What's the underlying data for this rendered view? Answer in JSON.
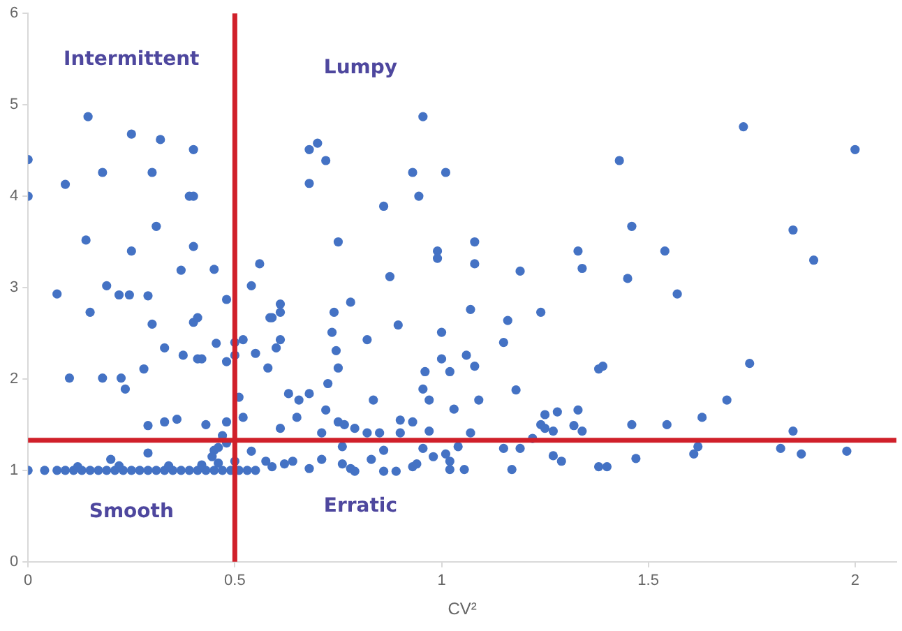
{
  "chart_data": {
    "type": "scatter",
    "xlabel": "CV²",
    "xlim": [
      0,
      2.1
    ],
    "xticks": [
      0,
      {
        "value": 0.5,
        "label": "0.5"
      },
      1,
      {
        "value": 1.5,
        "label": "1.5"
      },
      2
    ],
    "ylim": [
      0,
      6
    ],
    "yticks": [
      0,
      1,
      2,
      3,
      4,
      5,
      6
    ],
    "grid": false,
    "legend": false,
    "marker": "circle",
    "series": [
      {
        "color": "#4472c4",
        "x": [
          0,
          0,
          0.145,
          0.09,
          0.18,
          0.25,
          0.32,
          0.3,
          0.4,
          0.39,
          0.4,
          0.14,
          0.31,
          0.25,
          0.4,
          0.37,
          0.45,
          0.07,
          0.19,
          0.22,
          0.245,
          0.29,
          0.15,
          0.48,
          0.54,
          0.56,
          0.68,
          0.7,
          0.72,
          0.68,
          0.75,
          0.875,
          0.86,
          0.955,
          0.93,
          0.945,
          1.01,
          0.99,
          0.99,
          0.74,
          0.78,
          0.59,
          0.61,
          1.43,
          1.73,
          2.0,
          1.46,
          1.85,
          1.9,
          1.08,
          1.08,
          1.19,
          1.33,
          1.34,
          1.54,
          1.45,
          1.57,
          1.07,
          1.16,
          1.24,
          1.0,
          1.15,
          1.0,
          1.06,
          1.08,
          1.02,
          1.18,
          1.09,
          1.03,
          1.38,
          1.39,
          1.745,
          1.69,
          1.63,
          1.545,
          1.46,
          1.33,
          1.28,
          1.25,
          1.24,
          1.25,
          1.27,
          1.32,
          1.34,
          1.07,
          1.85,
          1.04,
          1.15,
          1.19,
          1.22,
          1.27,
          1.29,
          1.38,
          1.4,
          1.47,
          1.61,
          1.62,
          1.82,
          1.87,
          1.98,
          1.17,
          1.055,
          1.01,
          1.02,
          1.02,
          0.3,
          0.4,
          0.41,
          0.33,
          0.375,
          0.41,
          0.42,
          0.455,
          0.48,
          0.5,
          0.52,
          0.5,
          0.55,
          0.58,
          0.585,
          0.61,
          0.61,
          0.6,
          0.735,
          0.745,
          0.75,
          0.725,
          0.82,
          0.895,
          0.96,
          0.955,
          0.97,
          0.72,
          0.835,
          0.68,
          0.655,
          0.63,
          0.65,
          0.51,
          0.52,
          0.61,
          0.1,
          0.18,
          0.225,
          0.235,
          0.28,
          0.29,
          0.33,
          0.36,
          0.43,
          0.48,
          0.9,
          0.93,
          0.75,
          0.765,
          0.71,
          0.79,
          0.82,
          0.85,
          0.9,
          0.97,
          0.29,
          0.54,
          0.86,
          0.955,
          0.76,
          0.45,
          0.2,
          0.575,
          0.59,
          0.62,
          0.64,
          0.68,
          0.71,
          0.76,
          0.78,
          0.79,
          0.83,
          0.86,
          0.89,
          0.93,
          0.94,
          0.98,
          0.445,
          0.46,
          0.47,
          0.48,
          0,
          0.04,
          0.07,
          0.09,
          0.11,
          0.13,
          0.15,
          0.17,
          0.19,
          0.21,
          0.23,
          0.25,
          0.27,
          0.29,
          0.31,
          0.33,
          0.35,
          0.37,
          0.39,
          0.41,
          0.43,
          0.45,
          0.47,
          0.49,
          0.51,
          0.53,
          0.55,
          0.12,
          0.22,
          0.34,
          0.42,
          0.46,
          0.5
        ],
        "values": [
          4.4,
          4.0,
          4.87,
          4.13,
          4.26,
          4.68,
          4.62,
          4.26,
          4.51,
          4.0,
          4.0,
          3.52,
          3.67,
          3.4,
          3.45,
          3.19,
          3.2,
          2.93,
          3.02,
          2.92,
          2.92,
          2.91,
          2.73,
          2.87,
          3.02,
          3.26,
          4.51,
          4.58,
          4.39,
          4.14,
          3.5,
          3.12,
          3.89,
          4.87,
          4.26,
          4.0,
          4.26,
          3.4,
          3.32,
          2.73,
          2.84,
          2.67,
          2.82,
          4.39,
          4.76,
          4.51,
          3.67,
          3.63,
          3.3,
          3.5,
          3.26,
          3.18,
          3.4,
          3.21,
          3.4,
          3.1,
          2.93,
          2.76,
          2.64,
          2.73,
          2.51,
          2.4,
          2.22,
          2.26,
          2.14,
          2.08,
          1.88,
          1.77,
          1.67,
          2.11,
          2.14,
          2.17,
          1.77,
          1.58,
          1.5,
          1.5,
          1.66,
          1.64,
          1.61,
          1.5,
          1.46,
          1.43,
          1.49,
          1.43,
          1.41,
          1.43,
          1.26,
          1.24,
          1.24,
          1.35,
          1.16,
          1.1,
          1.04,
          1.04,
          1.13,
          1.18,
          1.26,
          1.24,
          1.18,
          1.21,
          1.01,
          1.01,
          1.18,
          1.1,
          1.01,
          2.6,
          2.62,
          2.67,
          2.34,
          2.26,
          2.22,
          2.22,
          2.39,
          2.19,
          2.4,
          2.43,
          2.26,
          2.28,
          2.12,
          2.67,
          2.73,
          2.43,
          2.34,
          2.51,
          2.31,
          2.12,
          1.95,
          2.43,
          2.59,
          2.08,
          1.89,
          1.77,
          1.66,
          1.77,
          1.84,
          1.77,
          1.84,
          1.58,
          1.8,
          1.58,
          1.46,
          2.01,
          2.01,
          2.01,
          1.89,
          2.11,
          1.49,
          1.53,
          1.56,
          1.5,
          1.53,
          1.55,
          1.53,
          1.53,
          1.5,
          1.41,
          1.46,
          1.41,
          1.41,
          1.41,
          1.43,
          1.19,
          1.21,
          1.22,
          1.24,
          1.26,
          1.22,
          1.12,
          1.1,
          1.04,
          1.07,
          1.1,
          1.02,
          1.12,
          1.07,
          1.02,
          0.99,
          1.12,
          0.99,
          0.99,
          1.04,
          1.07,
          1.15,
          1.15,
          1.25,
          1.38,
          1.3,
          1.0,
          1.0,
          1.0,
          1.0,
          1.0,
          1.0,
          1.0,
          1.0,
          1.0,
          1.0,
          1.0,
          1.0,
          1.0,
          1.0,
          1.0,
          1.0,
          1.0,
          1.0,
          1.0,
          1.0,
          1.0,
          1.0,
          1.0,
          1.0,
          1.0,
          1.0,
          1.0,
          1.04,
          1.05,
          1.05,
          1.06,
          1.08,
          1.1
        ]
      }
    ],
    "ref_lines": [
      {
        "axis": "x",
        "value": 0.5,
        "color": "#d0202a"
      },
      {
        "axis": "y",
        "value": 1.33,
        "color": "#d0202a"
      }
    ],
    "annotations": [
      "Intermittent",
      "Lumpy",
      "Smooth",
      "Erratic"
    ]
  }
}
